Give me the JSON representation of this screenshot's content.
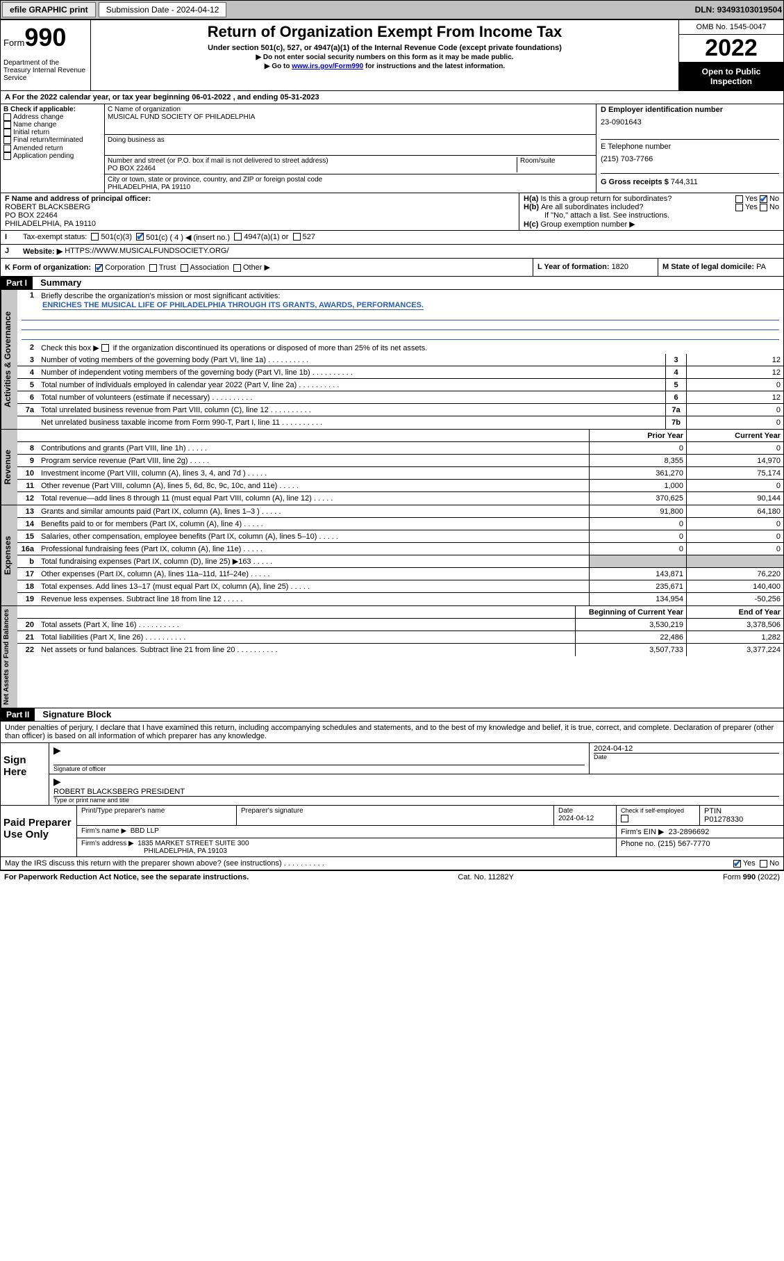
{
  "topbar": {
    "efile": "efile GRAPHIC print",
    "subdate_label": "Submission Date - ",
    "subdate": "2024-04-12",
    "dln_label": "DLN: ",
    "dln": "93493103019504"
  },
  "header": {
    "form_prefix": "Form",
    "form_num": "990",
    "dept": "Department of the Treasury\nInternal Revenue Service",
    "title": "Return of Organization Exempt From Income Tax",
    "sub1": "Under section 501(c), 527, or 4947(a)(1) of the Internal Revenue Code (except private foundations)",
    "sub2": "▶ Do not enter social security numbers on this form as it may be made public.",
    "sub3_pre": "▶ Go to ",
    "sub3_link": "www.irs.gov/Form990",
    "sub3_post": " for instructions and the latest information.",
    "omb": "OMB No. 1545-0047",
    "year": "2022",
    "openpub": "Open to Public Inspection"
  },
  "A": {
    "text": "For the 2022 calendar year, or tax year beginning ",
    "begin": "06-01-2022",
    "mid": " , and ending ",
    "end": "05-31-2023"
  },
  "B": {
    "label": "B Check if applicable:",
    "items": [
      "Address change",
      "Name change",
      "Initial return",
      "Final return/terminated",
      "Amended return",
      "Application pending"
    ]
  },
  "C": {
    "name_label": "C Name of organization",
    "name": "MUSICAL FUND SOCIETY OF PHILADELPHIA",
    "dba_label": "Doing business as",
    "addr_label": "Number and street (or P.O. box if mail is not delivered to street address)",
    "room_label": "Room/suite",
    "addr": "PO BOX 22464",
    "city_label": "City or town, state or province, country, and ZIP or foreign postal code",
    "city": "PHILADELPHIA, PA  19110"
  },
  "D": {
    "label": "D Employer identification number",
    "val": "23-0901643"
  },
  "E": {
    "label": "E Telephone number",
    "val": "(215) 703-7766"
  },
  "G": {
    "label": "G Gross receipts $ ",
    "val": "744,311"
  },
  "F": {
    "label": "F Name and address of principal officer:",
    "name": "ROBERT BLACKSBERG",
    "addr1": "PO BOX 22464",
    "addr2": "PHILADELPHIA, PA  19110"
  },
  "H": {
    "a": "Is this a group return for subordinates?",
    "b": "Are all subordinates included?",
    "bnote": "If \"No,\" attach a list. See instructions.",
    "c": "Group exemption number ▶",
    "yes": "Yes",
    "no": "No"
  },
  "I": {
    "label": "Tax-exempt status:",
    "c3": "501(c)(3)",
    "c": "501(c) ( 4 ) ◀ (insert no.)",
    "a1": "4947(a)(1) or",
    "s527": "527"
  },
  "J": {
    "label": "Website: ▶",
    "val": "HTTPS://WWW.MUSICALFUNDSOCIETY.ORG/"
  },
  "K": {
    "label": "K Form of organization:",
    "corp": "Corporation",
    "trust": "Trust",
    "assoc": "Association",
    "other": "Other ▶"
  },
  "L": {
    "label": "L Year of formation: ",
    "val": "1820"
  },
  "M": {
    "label": "M State of legal domicile: ",
    "val": "PA"
  },
  "partI": {
    "bar": "Part I",
    "title": "Summary",
    "l1_label": "Briefly describe the organization's mission or most significant activities:",
    "l1_mission": "ENRICHES THE MUSICAL LIFE OF PHILADELPHIA THROUGH ITS GRANTS, AWARDS, PERFORMANCES.",
    "l2": "Check this box ▶  if the organization discontinued its operations or disposed of more than 25% of its net assets.",
    "side1": "Activities & Governance",
    "side2": "Revenue",
    "side3": "Expenses",
    "side4": "Net Assets or Fund Balances",
    "prior": "Prior Year",
    "current": "Current Year",
    "begin": "Beginning of Current Year",
    "end": "End of Year",
    "rows_gov": [
      {
        "n": "3",
        "t": "Number of voting members of the governing body (Part VI, line 1a)",
        "b": "3",
        "v": "12"
      },
      {
        "n": "4",
        "t": "Number of independent voting members of the governing body (Part VI, line 1b)",
        "b": "4",
        "v": "12"
      },
      {
        "n": "5",
        "t": "Total number of individuals employed in calendar year 2022 (Part V, line 2a)",
        "b": "5",
        "v": "0"
      },
      {
        "n": "6",
        "t": "Total number of volunteers (estimate if necessary)",
        "b": "6",
        "v": "12"
      },
      {
        "n": "7a",
        "t": "Total unrelated business revenue from Part VIII, column (C), line 12",
        "b": "7a",
        "v": "0"
      },
      {
        "n": "",
        "t": "Net unrelated business taxable income from Form 990-T, Part I, line 11",
        "b": "7b",
        "v": "0"
      }
    ],
    "rows_rev": [
      {
        "n": "8",
        "t": "Contributions and grants (Part VIII, line 1h)",
        "p": "0",
        "c": "0"
      },
      {
        "n": "9",
        "t": "Program service revenue (Part VIII, line 2g)",
        "p": "8,355",
        "c": "14,970"
      },
      {
        "n": "10",
        "t": "Investment income (Part VIII, column (A), lines 3, 4, and 7d )",
        "p": "361,270",
        "c": "75,174"
      },
      {
        "n": "11",
        "t": "Other revenue (Part VIII, column (A), lines 5, 6d, 8c, 9c, 10c, and 11e)",
        "p": "1,000",
        "c": "0"
      },
      {
        "n": "12",
        "t": "Total revenue—add lines 8 through 11 (must equal Part VIII, column (A), line 12)",
        "p": "370,625",
        "c": "90,144"
      }
    ],
    "rows_exp": [
      {
        "n": "13",
        "t": "Grants and similar amounts paid (Part IX, column (A), lines 1–3 )",
        "p": "91,800",
        "c": "64,180"
      },
      {
        "n": "14",
        "t": "Benefits paid to or for members (Part IX, column (A), line 4)",
        "p": "0",
        "c": "0"
      },
      {
        "n": "15",
        "t": "Salaries, other compensation, employee benefits (Part IX, column (A), lines 5–10)",
        "p": "0",
        "c": "0"
      },
      {
        "n": "16a",
        "t": "Professional fundraising fees (Part IX, column (A), line 11e)",
        "p": "0",
        "c": "0"
      },
      {
        "n": "b",
        "t": "Total fundraising expenses (Part IX, column (D), line 25) ▶163",
        "p": "",
        "c": "",
        "grey": true
      },
      {
        "n": "17",
        "t": "Other expenses (Part IX, column (A), lines 11a–11d, 11f–24e)",
        "p": "143,871",
        "c": "76,220"
      },
      {
        "n": "18",
        "t": "Total expenses. Add lines 13–17 (must equal Part IX, column (A), line 25)",
        "p": "235,671",
        "c": "140,400"
      },
      {
        "n": "19",
        "t": "Revenue less expenses. Subtract line 18 from line 12",
        "p": "134,954",
        "c": "-50,256"
      }
    ],
    "rows_net": [
      {
        "n": "20",
        "t": "Total assets (Part X, line 16)",
        "p": "3,530,219",
        "c": "3,378,506"
      },
      {
        "n": "21",
        "t": "Total liabilities (Part X, line 26)",
        "p": "22,486",
        "c": "1,282"
      },
      {
        "n": "22",
        "t": "Net assets or fund balances. Subtract line 21 from line 20",
        "p": "3,507,733",
        "c": "3,377,224"
      }
    ]
  },
  "partII": {
    "bar": "Part II",
    "title": "Signature Block",
    "declare": "Under penalties of perjury, I declare that I have examined this return, including accompanying schedules and statements, and to the best of my knowledge and belief, it is true, correct, and complete. Declaration of preparer (other than officer) is based on all information of which preparer has any knowledge."
  },
  "sign": {
    "label": "Sign Here",
    "sig_label": "Signature of officer",
    "date_label": "Date",
    "date": "2024-04-12",
    "name_label": "Type or print name and title",
    "name": "ROBERT BLACKSBERG  PRESIDENT"
  },
  "prep": {
    "label": "Paid Preparer Use Only",
    "pname_label": "Print/Type preparer's name",
    "psig_label": "Preparer's signature",
    "pdate_label": "Date",
    "pdate": "2024-04-12",
    "chk_label": "Check        if self-employed",
    "ptin_label": "PTIN",
    "ptin": "P01278330",
    "firm_label": "Firm's name    ▶",
    "firm": "BBD LLP",
    "ein_label": "Firm's EIN ▶",
    "ein": "23-2896692",
    "addr_label": "Firm's address ▶",
    "addr1": "1835 MARKET STREET SUITE 300",
    "addr2": "PHILADELPHIA, PA  19103",
    "phone_label": "Phone no. ",
    "phone": "(215) 567-7770"
  },
  "discuss": {
    "text": "May the IRS discuss this return with the preparer shown above? (see instructions)",
    "yes": "Yes",
    "no": "No"
  },
  "footer": {
    "left": "For Paperwork Reduction Act Notice, see the separate instructions.",
    "mid": "Cat. No. 11282Y",
    "right": "Form 990 (2022)"
  }
}
